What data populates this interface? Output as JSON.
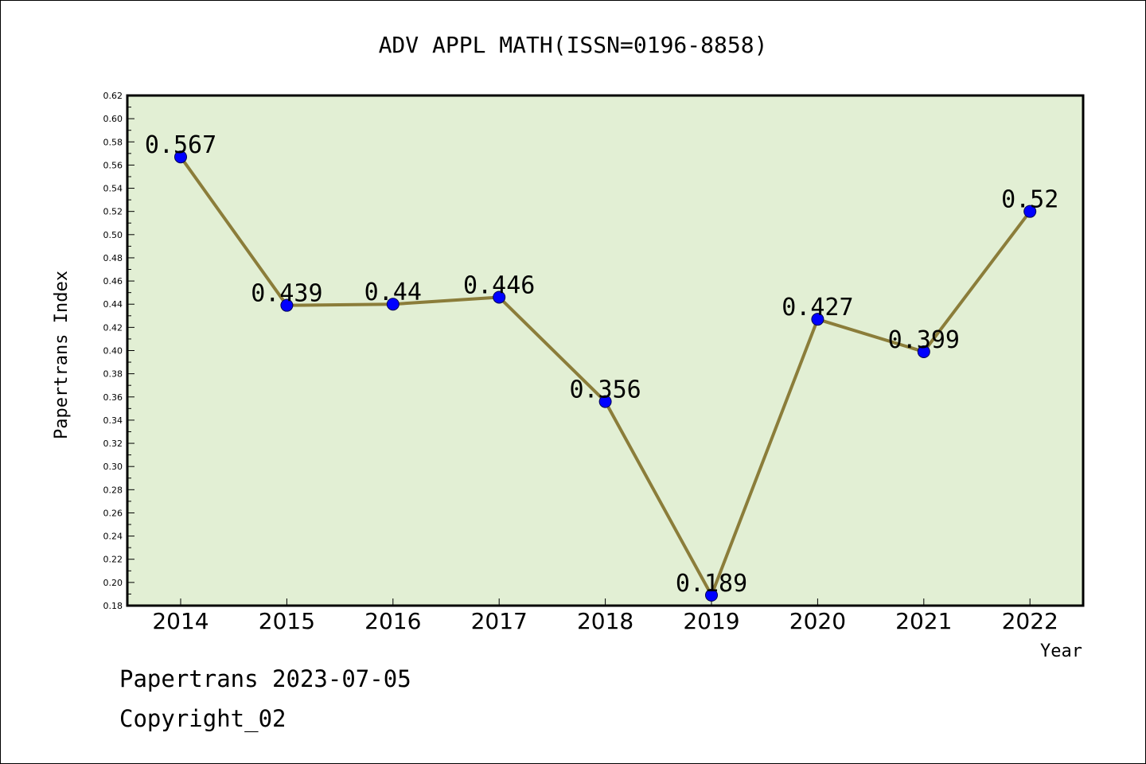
{
  "chart_data": {
    "type": "line",
    "title": "ADV APPL MATH(ISSN=0196-8858)",
    "xlabel": "Year",
    "ylabel": "Papertrans Index",
    "categories": [
      "2014",
      "2015",
      "2016",
      "2017",
      "2018",
      "2019",
      "2020",
      "2021",
      "2022"
    ],
    "values": [
      0.567,
      0.439,
      0.44,
      0.446,
      0.356,
      0.189,
      0.427,
      0.399,
      0.52
    ],
    "data_labels": [
      "0.567",
      "0.439",
      "0.44",
      "0.446",
      "0.356",
      "0.189",
      "0.427",
      "0.399",
      "0.52"
    ],
    "ylim": [
      0.18,
      0.62
    ],
    "yticks": [
      "0.18",
      "0.20",
      "0.22",
      "0.24",
      "0.26",
      "0.28",
      "0.30",
      "0.32",
      "0.34",
      "0.36",
      "0.38",
      "0.40",
      "0.42",
      "0.44",
      "0.46",
      "0.48",
      "0.50",
      "0.52",
      "0.54",
      "0.56",
      "0.58",
      "0.60",
      "0.62"
    ],
    "grid": false,
    "colors": {
      "plot_background": "#e2efd4",
      "line": "#8b7d3a",
      "marker": "#0000ff"
    }
  },
  "footer": {
    "date_line": "Papertrans 2023-07-05",
    "copyright": "Copyright_02"
  }
}
